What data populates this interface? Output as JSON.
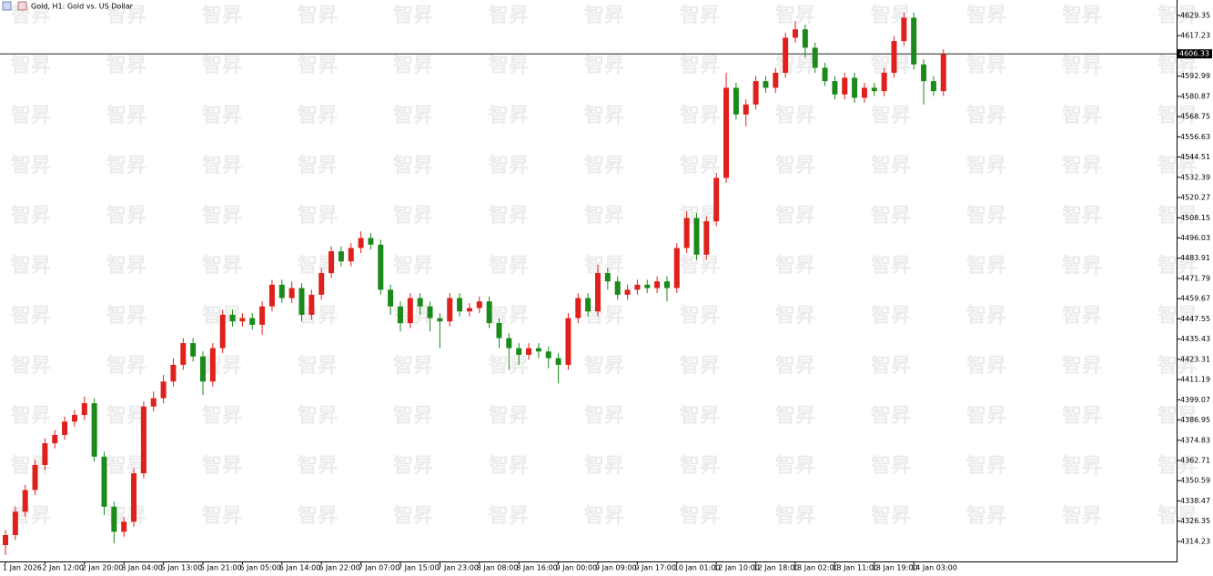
{
  "chart_data": {
    "type": "candlestick",
    "title": "Gold, H1:  Gold vs. US Dollar",
    "watermark": "智昇",
    "up_color": "#e0201c",
    "down_color": "#1a8a1a",
    "ylim": [
      4302.2,
      4638.6
    ],
    "yticks": [
      4629.35,
      4617.23,
      4592.99,
      4580.87,
      4568.75,
      4556.63,
      4544.51,
      4532.39,
      4520.27,
      4508.15,
      4496.03,
      4483.91,
      4471.79,
      4459.67,
      4447.55,
      4435.43,
      4423.31,
      4411.19,
      4399.07,
      4386.95,
      4374.83,
      4362.71,
      4350.59,
      4338.47,
      4326.35,
      4314.23
    ],
    "current_price": 4606.33,
    "categories": [
      "1 Jan 2026",
      null,
      null,
      null,
      "2 Jan 12:00",
      null,
      null,
      null,
      "2 Jan 20:00",
      null,
      null,
      null,
      "3 Jan 04:00",
      null,
      null,
      null,
      "5 Jan 13:00",
      null,
      null,
      null,
      "5 Jan 21:00",
      null,
      null,
      null,
      "6 Jan 05:00",
      null,
      null,
      null,
      "6 Jan 14:00",
      null,
      null,
      null,
      "6 Jan 22:00",
      null,
      null,
      null,
      "7 Jan 07:00",
      null,
      null,
      null,
      "7 Jan 15:00",
      null,
      null,
      null,
      "7 Jan 23:00",
      null,
      null,
      null,
      "8 Jan 08:00",
      null,
      null,
      null,
      "8 Jan 16:00",
      null,
      null,
      null,
      "9 Jan 00:00",
      null,
      null,
      null,
      "9 Jan 09:00",
      null,
      null,
      null,
      "9 Jan 17:00",
      null,
      null,
      null,
      "10 Jan 01:00",
      null,
      null,
      null,
      "12 Jan 10:00",
      null,
      null,
      null,
      "12 Jan 18:00",
      null,
      null,
      null,
      "13 Jan 02:00",
      null,
      null,
      null,
      "13 Jan 11:00",
      null,
      null,
      null,
      "13 Jan 19:00",
      null,
      null,
      null,
      "14 Jan 03:00",
      null,
      null,
      null
    ],
    "open": [
      4312,
      4318,
      4332,
      4345,
      4360,
      4373,
      4378,
      4386,
      4390,
      4397,
      4365,
      4335,
      4320,
      4326,
      4355,
      4395,
      4400,
      4410,
      4420,
      4433,
      4425,
      4410,
      4430,
      4450,
      4446,
      4448,
      4444,
      4455,
      4468,
      4460,
      4466,
      4450,
      4462,
      4475,
      4488,
      4482,
      4490,
      4496,
      4492,
      4465,
      4455,
      4445,
      4460,
      4455,
      4448,
      4446,
      4460,
      4452,
      4454,
      4458,
      4445,
      4436,
      4430,
      4426,
      4430,
      4428,
      4424,
      4420,
      4448,
      4460,
      4452,
      4475,
      4470,
      4462,
      4465,
      4468,
      4466,
      4470,
      4466,
      4490,
      4508,
      4486,
      4506,
      4532,
      4586,
      4570,
      4576,
      4590,
      4586,
      4595,
      4616,
      4621,
      4610,
      4598,
      4590,
      4582,
      4592,
      4580,
      4586,
      4584,
      4595,
      4614,
      4628,
      4600,
      4590,
      4584
    ],
    "high": [
      4321,
      4335,
      4348,
      4363,
      4376,
      4381,
      4389,
      4393,
      4401,
      4400,
      4368,
      4338,
      4329,
      4358,
      4398,
      4404,
      4414,
      4424,
      4436,
      4436,
      4428,
      4433,
      4453,
      4453,
      4451,
      4451,
      4458,
      4471,
      4471,
      4470,
      4469,
      4465,
      4478,
      4491,
      4491,
      4493,
      4500,
      4499,
      4495,
      4468,
      4458,
      4463,
      4463,
      4458,
      4451,
      4463,
      4463,
      4457,
      4461,
      4461,
      4448,
      4439,
      4433,
      4433,
      4433,
      4431,
      4427,
      4451,
      4463,
      4463,
      4480,
      4478,
      4473,
      4468,
      4471,
      4471,
      4473,
      4473,
      4493,
      4512,
      4511,
      4509,
      4535,
      4595,
      4589,
      4579,
      4593,
      4593,
      4598,
      4619,
      4626,
      4624,
      4613,
      4601,
      4593,
      4595,
      4595,
      4589,
      4589,
      4598,
      4617,
      4631,
      4631,
      4603,
      4593,
      4609
    ],
    "low": [
      4306,
      4315,
      4329,
      4342,
      4357,
      4370,
      4375,
      4383,
      4387,
      4362,
      4330,
      4313,
      4317,
      4323,
      4352,
      4392,
      4397,
      4407,
      4417,
      4422,
      4402,
      4407,
      4427,
      4443,
      4443,
      4441,
      4438,
      4452,
      4457,
      4457,
      4446,
      4447,
      4459,
      4472,
      4479,
      4479,
      4487,
      4489,
      4462,
      4450,
      4440,
      4442,
      4450,
      4440,
      4430,
      4443,
      4449,
      4449,
      4451,
      4442,
      4430,
      4417,
      4420,
      4423,
      4424,
      4418,
      4409,
      4417,
      4445,
      4449,
      4449,
      4465,
      4459,
      4459,
      4462,
      4463,
      4463,
      4458,
      4463,
      4487,
      4483,
      4483,
      4503,
      4529,
      4567,
      4563,
      4573,
      4583,
      4583,
      4592,
      4613,
      4604,
      4595,
      4587,
      4579,
      4579,
      4577,
      4577,
      4581,
      4581,
      4592,
      4611,
      4597,
      4576,
      4581,
      4581
    ],
    "close": [
      4318,
      4332,
      4345,
      4360,
      4373,
      4378,
      4386,
      4390,
      4397,
      4365,
      4335,
      4320,
      4326,
      4355,
      4395,
      4400,
      4410,
      4420,
      4433,
      4425,
      4410,
      4430,
      4450,
      4446,
      4448,
      4444,
      4455,
      4468,
      4460,
      4466,
      4450,
      4462,
      4475,
      4488,
      4482,
      4490,
      4496,
      4492,
      4465,
      4455,
      4445,
      4460,
      4455,
      4448,
      4446,
      4460,
      4452,
      4454,
      4458,
      4445,
      4436,
      4430,
      4426,
      4430,
      4428,
      4424,
      4420,
      4448,
      4460,
      4452,
      4475,
      4470,
      4462,
      4465,
      4468,
      4466,
      4470,
      4466,
      4490,
      4508,
      4486,
      4506,
      4532,
      4586,
      4570,
      4576,
      4590,
      4586,
      4595,
      4616,
      4621,
      4610,
      4598,
      4590,
      4582,
      4592,
      4580,
      4586,
      4584,
      4595,
      4614,
      4628,
      4600,
      4590,
      4584,
      4606
    ]
  }
}
